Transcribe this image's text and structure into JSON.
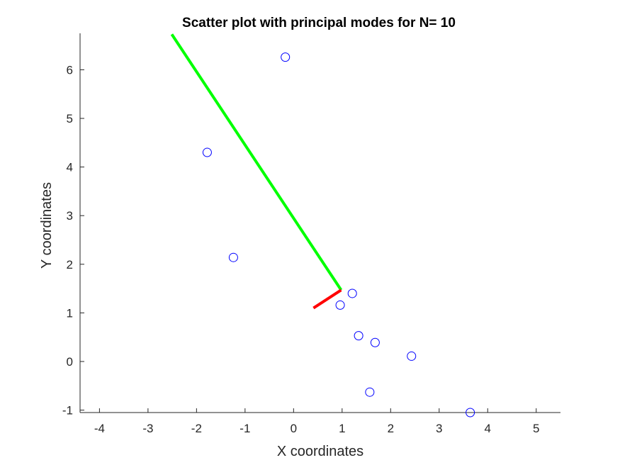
{
  "chart_data": {
    "type": "scatter",
    "title": "Scatter plot with principal modes for N= 10",
    "xlabel": "X coordinates",
    "ylabel": "Y coordinates",
    "xlim": [
      -4.4,
      5.5
    ],
    "ylim": [
      -1.05,
      6.75
    ],
    "xticks": [
      -4,
      -3,
      -2,
      -1,
      0,
      1,
      2,
      3,
      4,
      5
    ],
    "yticks": [
      -1,
      0,
      1,
      2,
      3,
      4,
      5,
      6
    ],
    "grid": false,
    "box": false,
    "points": {
      "x": [
        -0.17,
        -1.78,
        -1.24,
        1.21,
        0.96,
        1.34,
        1.68,
        2.43,
        1.57,
        3.64
      ],
      "y": [
        6.26,
        4.3,
        2.14,
        1.4,
        1.16,
        0.53,
        0.39,
        0.11,
        -0.63,
        -1.05
      ],
      "marker": "circle",
      "color": "#0000ff"
    },
    "modes": [
      {
        "color": "#00ff00",
        "x": [
          0.98,
          -2.51
        ],
        "y": [
          1.47,
          6.73
        ]
      },
      {
        "color": "#ff0000",
        "x": [
          0.98,
          0.41
        ],
        "y": [
          1.47,
          1.1
        ]
      }
    ]
  }
}
